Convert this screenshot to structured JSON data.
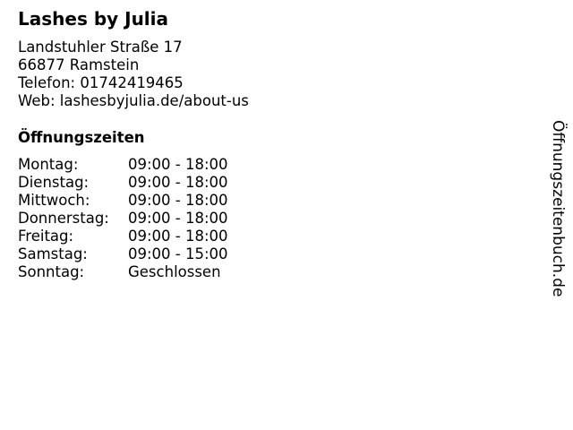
{
  "business": {
    "name": "Lashes by Julia",
    "street": "Landstuhler Straße 17",
    "city": "66877 Ramstein",
    "phone": "Telefon: 01742419465",
    "web": "Web: lashesbyjulia.de/about-us"
  },
  "hours": {
    "title": "Öffnungszeiten",
    "rows": [
      {
        "day": "Montag:",
        "time": "09:00 - 18:00"
      },
      {
        "day": "Dienstag:",
        "time": "09:00 - 18:00"
      },
      {
        "day": "Mittwoch:",
        "time": "09:00 - 18:00"
      },
      {
        "day": "Donnerstag:",
        "time": "09:00 - 18:00"
      },
      {
        "day": "Freitag:",
        "time": "09:00 - 18:00"
      },
      {
        "day": "Samstag:",
        "time": "09:00 - 15:00"
      },
      {
        "day": "Sonntag:",
        "time": "Geschlossen"
      }
    ]
  },
  "watermark": "Öffnungszeitenbuch.de"
}
